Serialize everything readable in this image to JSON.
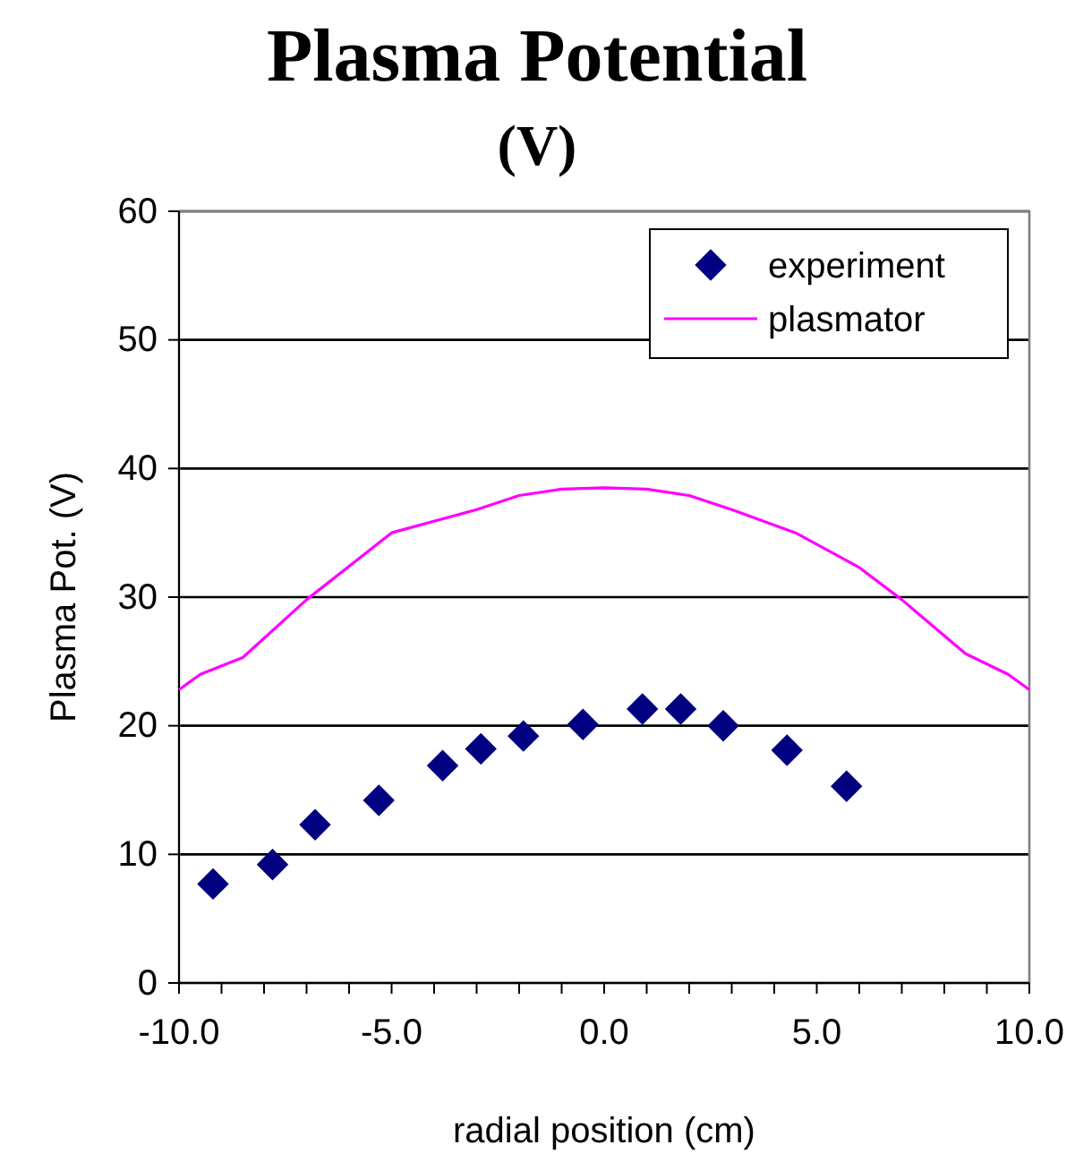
{
  "chart_data": {
    "type": "scatter",
    "title": "Plasma Potential",
    "subtitle": "(V)",
    "xlabel": "radial position (cm)",
    "ylabel": "Plasma Pot. (V)",
    "xlim": [
      -10,
      10
    ],
    "ylim": [
      0,
      60
    ],
    "xticks": [
      {
        "value": -10,
        "label": "-10.0"
      },
      {
        "value": -9,
        "label": null
      },
      {
        "value": -8,
        "label": null
      },
      {
        "value": -7,
        "label": null
      },
      {
        "value": -6,
        "label": null
      },
      {
        "value": -5,
        "label": "-5.0"
      },
      {
        "value": -4,
        "label": null
      },
      {
        "value": -3,
        "label": null
      },
      {
        "value": -2,
        "label": null
      },
      {
        "value": -1,
        "label": null
      },
      {
        "value": 0,
        "label": "0.0"
      },
      {
        "value": 1,
        "label": null
      },
      {
        "value": 2,
        "label": null
      },
      {
        "value": 3,
        "label": null
      },
      {
        "value": 4,
        "label": null
      },
      {
        "value": 5,
        "label": "5.0"
      },
      {
        "value": 6,
        "label": null
      },
      {
        "value": 7,
        "label": null
      },
      {
        "value": 8,
        "label": null
      },
      {
        "value": 9,
        "label": null
      },
      {
        "value": 10,
        "label": "10.0"
      }
    ],
    "yticks": [
      0,
      10,
      20,
      30,
      40,
      50,
      60
    ],
    "grid": "y",
    "legend": "top right",
    "series": [
      {
        "name": "experiment",
        "marker": "diamond",
        "color": "#000080",
        "x": [
          -9.2,
          -7.8,
          -6.8,
          -5.3,
          -3.8,
          -2.9,
          -1.9,
          -0.5,
          0.9,
          1.8,
          2.8,
          4.3,
          5.7
        ],
        "values": [
          7.7,
          9.2,
          12.3,
          14.2,
          16.9,
          18.2,
          19.2,
          20.1,
          21.3,
          21.3,
          20,
          18.1,
          15.3
        ]
      },
      {
        "name": "plasmator",
        "type": "line",
        "marker": "none",
        "line_style": "solid",
        "color": "#ff00ff",
        "x": [
          -10,
          -9.5,
          -8.5,
          -7,
          -5,
          -3,
          -2,
          -1,
          0,
          1,
          2,
          3,
          4.5,
          6,
          7,
          8.5,
          9.5,
          10
        ],
        "values": [
          22.8,
          24,
          25.3,
          29.8,
          35,
          36.8,
          37.9,
          38.4,
          38.5,
          38.4,
          37.9,
          36.8,
          35,
          32.3,
          29.8,
          25.6,
          24,
          22.8
        ]
      }
    ]
  }
}
